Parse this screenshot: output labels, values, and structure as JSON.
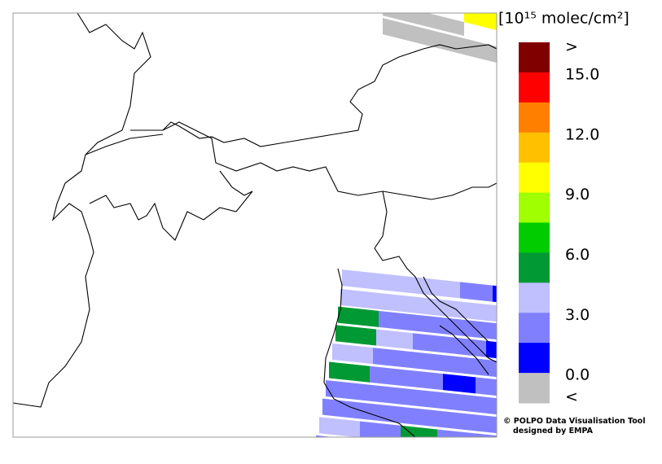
{
  "colorbar": {
    "title": "[10¹⁵ molec/cm²]",
    "colors": [
      "#800000",
      "#ff0000",
      "#ff8000",
      "#ffc000",
      "#ffff00",
      "#a0ff00",
      "#00cc00",
      "#009933",
      "#c0c0ff",
      "#8080ff",
      "#0000ff",
      "#c0c0c0"
    ],
    "top_label": ">",
    "labels": [
      "15.0",
      "12.0",
      "9.0",
      "6.0",
      "3.0",
      "0.0"
    ],
    "bottom_label": "<"
  },
  "credit": {
    "line1": "© POLPO Data Visualisation Tool",
    "line2": "designed by EMPA"
  }
}
